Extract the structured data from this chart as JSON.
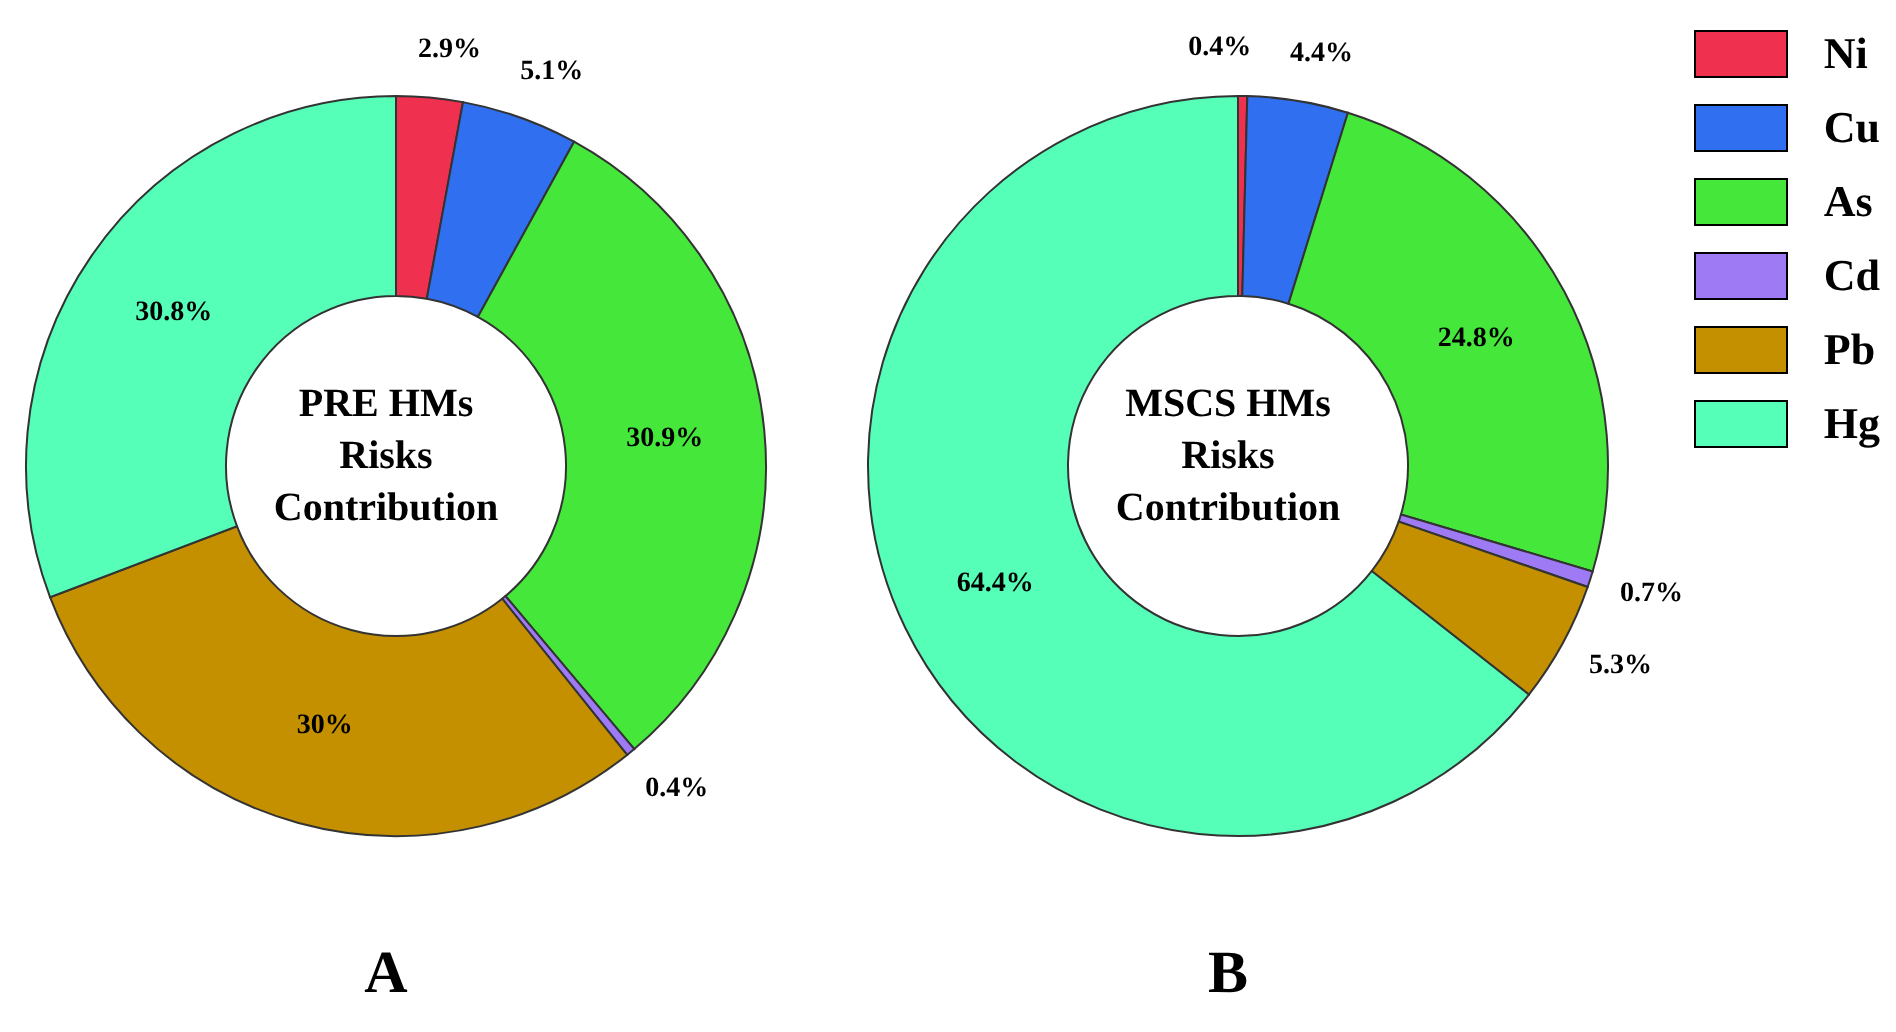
{
  "chart_data": [
    {
      "type": "donut",
      "title": "PRE HMs Risks Contribution",
      "annotations": [
        "A"
      ],
      "categories": [
        null,
        null,
        null,
        null,
        null,
        null
      ],
      "values": [
        2.9,
        5.1,
        30.9,
        0.4,
        30,
        30.8
      ],
      "value_labels": [
        "2.9%",
        "5.1%",
        "30.9%",
        "0.4%",
        "30%",
        "30.8%"
      ],
      "colors": [
        "#f0304f",
        "#2f6ff0",
        "#45e83a",
        "#9f7af5",
        "#c49000",
        "#55ffb8"
      ]
    },
    {
      "type": "donut",
      "title": "MSCS HMs Risks Contribution",
      "annotations": [
        "B"
      ],
      "categories": [
        "Ni",
        "Cu",
        "As",
        "Cd",
        "Pb",
        "Hg"
      ],
      "values": [
        0.4,
        4.4,
        24.8,
        0.7,
        5.3,
        64.4
      ],
      "value_labels": [
        "0.4%",
        "4.4%",
        "24.8%",
        "0.7%",
        "5.3%",
        "64.4%"
      ],
      "colors": [
        "#f0304f",
        "#2f6ff0",
        "#45e83a",
        "#9f7af5",
        "#c49000",
        "#55ffb8"
      ],
      "legend": "top right"
    }
  ]
}
